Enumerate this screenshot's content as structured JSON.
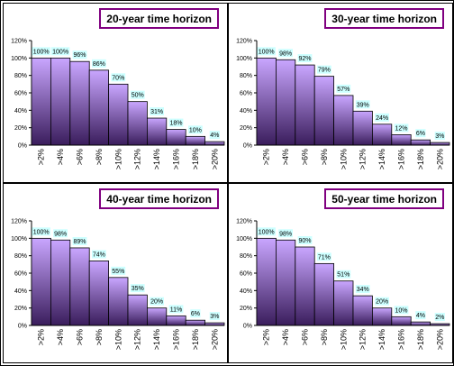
{
  "colors": {
    "bar_top": "#c9a6ff",
    "bar_bottom": "#3a1d5c",
    "label_bg": "#ccffff",
    "title_border": "#800080"
  },
  "chart_data": [
    {
      "type": "bar",
      "title": "20-year time horizon",
      "categories": [
        ">2%",
        ">4%",
        ">6%",
        ">8%",
        ">10%",
        ">12%",
        ">14%",
        ">16%",
        ">18%",
        ">20%"
      ],
      "values": [
        100,
        100,
        96,
        86,
        70,
        50,
        31,
        18,
        10,
        4
      ],
      "data_labels": [
        "100%",
        "100%",
        "96%",
        "86%",
        "70%",
        "50%",
        "31%",
        "18%",
        "10%",
        "4%"
      ],
      "ylim": [
        0,
        120
      ],
      "yticks": [
        "0%",
        "20%",
        "40%",
        "60%",
        "80%",
        "100%",
        "120%"
      ],
      "grid": false,
      "legend": "none"
    },
    {
      "type": "bar",
      "title": "30-year time horizon",
      "categories": [
        ">2%",
        ">4%",
        ">6%",
        ">8%",
        ">10%",
        ">12%",
        ">14%",
        ">16%",
        ">18%",
        ">20%"
      ],
      "values": [
        100,
        98,
        92,
        79,
        57,
        39,
        24,
        12,
        6,
        3
      ],
      "data_labels": [
        "100%",
        "98%",
        "92%",
        "79%",
        "57%",
        "39%",
        "24%",
        "12%",
        "6%",
        "3%"
      ],
      "ylim": [
        0,
        120
      ],
      "yticks": [
        "0%",
        "20%",
        "40%",
        "60%",
        "80%",
        "100%",
        "120%"
      ],
      "grid": false,
      "legend": "none"
    },
    {
      "type": "bar",
      "title": "40-year time horizon",
      "categories": [
        ">2%",
        ">4%",
        ">6%",
        ">8%",
        ">10%",
        ">12%",
        ">14%",
        ">16%",
        ">18%",
        ">20%"
      ],
      "values": [
        100,
        98,
        89,
        74,
        55,
        35,
        20,
        11,
        6,
        3
      ],
      "data_labels": [
        "100%",
        "98%",
        "89%",
        "74%",
        "55%",
        "35%",
        "20%",
        "11%",
        "6%",
        "3%"
      ],
      "ylim": [
        0,
        120
      ],
      "yticks": [
        "0%",
        "20%",
        "40%",
        "60%",
        "80%",
        "100%",
        "120%"
      ],
      "grid": false,
      "legend": "none"
    },
    {
      "type": "bar",
      "title": "50-year time horizon",
      "categories": [
        ">2%",
        ">4%",
        ">6%",
        ">8%",
        ">10%",
        ">12%",
        ">14%",
        ">16%",
        ">18%",
        ">20%"
      ],
      "values": [
        100,
        98,
        90,
        71,
        51,
        34,
        20,
        10,
        4,
        2
      ],
      "data_labels": [
        "100%",
        "98%",
        "90%",
        "71%",
        "51%",
        "34%",
        "20%",
        "10%",
        "4%",
        "2%"
      ],
      "ylim": [
        0,
        120
      ],
      "yticks": [
        "0%",
        "20%",
        "40%",
        "60%",
        "80%",
        "100%",
        "120%"
      ],
      "grid": false,
      "legend": "none"
    }
  ]
}
